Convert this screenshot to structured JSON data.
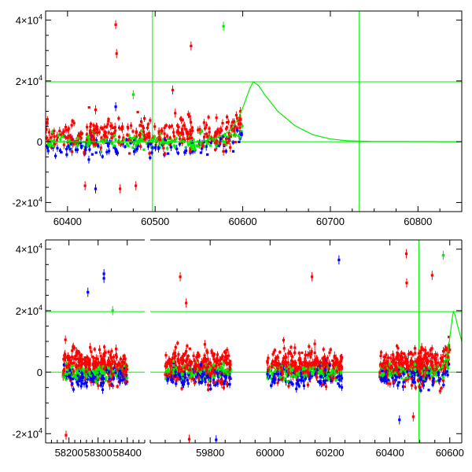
{
  "chart_data": [
    {
      "type": "scatter",
      "panel": "top",
      "xlim": [
        60375,
        60850
      ],
      "ylim": [
        -23000,
        43000
      ],
      "x_ticks": [
        60400,
        60500,
        60600,
        60700,
        60800
      ],
      "x_tick_labels": [
        "60400",
        "60500",
        "60600",
        "60700",
        "60800"
      ],
      "y_ticks": [
        -20000,
        0,
        20000,
        40000
      ],
      "y_tick_labels": [
        {
          "base": "-2×10",
          "exp": "4"
        },
        {
          "base": "0",
          "exp": ""
        },
        {
          "base": "2×10",
          "exp": "4"
        },
        {
          "base": "4×10",
          "exp": "4"
        }
      ],
      "reference_lines": {
        "horizontal": [
          0,
          19700
        ],
        "vertical": [
          60497,
          60733
        ]
      },
      "model_curve": {
        "peak_x": 60612,
        "peak_y": 19700,
        "shape": "rises before the peak, decays to zero after",
        "points": [
          [
            60555,
            300
          ],
          [
            60570,
            1200
          ],
          [
            60585,
            3500
          ],
          [
            60595,
            7500
          ],
          [
            60603,
            13500
          ],
          [
            60608,
            17500
          ],
          [
            60612,
            19700
          ],
          [
            60618,
            18500
          ],
          [
            60625,
            15500
          ],
          [
            60640,
            10000
          ],
          [
            60660,
            5200
          ],
          [
            60680,
            2300
          ],
          [
            60700,
            900
          ],
          [
            60720,
            300
          ],
          [
            60750,
            80
          ],
          [
            60850,
            0
          ]
        ]
      },
      "series_colors": {
        "red": "#ff0000",
        "green": "#00ee00",
        "blue": "#0000ff"
      },
      "notable_points": [
        {
          "x": 60455,
          "y": 38500,
          "color": "red"
        },
        {
          "x": 60456,
          "y": 29000,
          "color": "red"
        },
        {
          "x": 60541,
          "y": 31500,
          "color": "red"
        },
        {
          "x": 60578,
          "y": 38000,
          "color": "green"
        },
        {
          "x": 60432,
          "y": -15500,
          "color": "blue"
        },
        {
          "x": 60420,
          "y": -14500,
          "color": "red"
        },
        {
          "x": 60478,
          "y": -14500,
          "color": "red"
        },
        {
          "x": 60460,
          "y": -15500,
          "color": "red"
        },
        {
          "x": 60432,
          "y": 10500,
          "color": "red"
        },
        {
          "x": 60455,
          "y": 11500,
          "color": "blue"
        },
        {
          "x": 60520,
          "y": 17000,
          "color": "red"
        },
        {
          "x": 60475,
          "y": 15500,
          "color": "green"
        }
      ]
    },
    {
      "type": "scatter",
      "panel": "bottom",
      "broken_axis": true,
      "x_segments": [
        {
          "xlim": [
            58120,
            58460
          ],
          "x_ticks": [
            58200,
            58300,
            58400
          ],
          "x_tick_labels": [
            "58200",
            "58300",
            "58400"
          ]
        },
        {
          "xlim": [
            59600,
            60640
          ],
          "x_ticks": [
            59800,
            60000,
            60200,
            60400,
            60600
          ],
          "x_tick_labels": [
            "59800",
            "60000",
            "60200",
            "60400",
            "60600"
          ]
        }
      ],
      "ylim": [
        -23000,
        43000
      ],
      "y_ticks": [
        -20000,
        0,
        20000,
        40000
      ],
      "y_tick_labels": [
        {
          "base": "-2×10",
          "exp": "4"
        },
        {
          "base": "0",
          "exp": ""
        },
        {
          "base": "2×10",
          "exp": "4"
        },
        {
          "base": "4×10",
          "exp": "4"
        }
      ],
      "reference_lines": {
        "horizontal": [
          0,
          19700
        ],
        "vertical": [
          60497
        ]
      },
      "seasons": [
        [
          58180,
          58400
        ],
        [
          59650,
          59870
        ],
        [
          59990,
          60240
        ],
        [
          60365,
          60600
        ]
      ],
      "notable_points": [
        {
          "x": 58320,
          "y": 32000,
          "color": "blue"
        },
        {
          "x": 58320,
          "y": 30500,
          "color": "blue"
        },
        {
          "x": 58265,
          "y": 26000,
          "color": "blue"
        },
        {
          "x": 58350,
          "y": 20000,
          "color": "green"
        },
        {
          "x": 58190,
          "y": -20500,
          "color": "red"
        },
        {
          "x": 59700,
          "y": 31000,
          "color": "red"
        },
        {
          "x": 59720,
          "y": 22500,
          "color": "red"
        },
        {
          "x": 59730,
          "y": -21800,
          "color": "red"
        },
        {
          "x": 59820,
          "y": -22000,
          "color": "blue"
        },
        {
          "x": 60140,
          "y": 31000,
          "color": "red"
        },
        {
          "x": 60230,
          "y": 36500,
          "color": "blue"
        },
        {
          "x": 60455,
          "y": 38500,
          "color": "red"
        },
        {
          "x": 60456,
          "y": 29000,
          "color": "red"
        },
        {
          "x": 60541,
          "y": 31500,
          "color": "red"
        },
        {
          "x": 60578,
          "y": 38000,
          "color": "green"
        },
        {
          "x": 60432,
          "y": -15500,
          "color": "blue"
        },
        {
          "x": 60478,
          "y": -14500,
          "color": "red"
        }
      ]
    }
  ]
}
